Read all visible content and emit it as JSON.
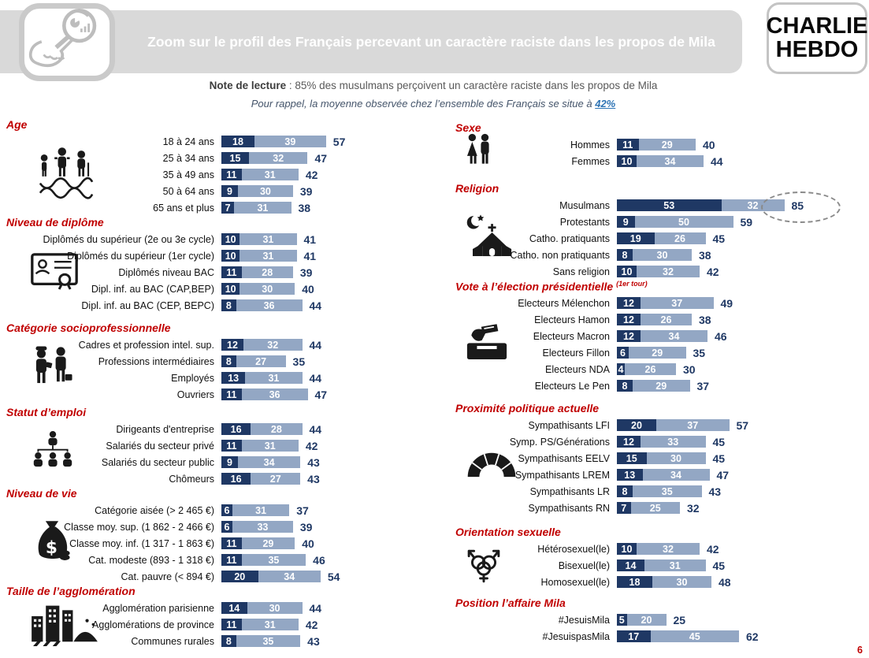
{
  "header": {
    "title": "Zoom sur le profil des Français percevant un caractère raciste dans les propos de Mila",
    "logo_line1": "CHARLIE",
    "logo_line2": "HEBDO",
    "note_label": "Note de lecture",
    "note_rest": " : 85% des musulmans perçoivent un caractère raciste dans les propos de Mila",
    "note_sub_prefix": "Pour rappel, la moyenne observée chez l’ensemble des Français se situe à ",
    "note_sub_value": "42%"
  },
  "page_number": "6",
  "colors": {
    "section_title_red": "#C00000",
    "bar_dark": "#1F3864",
    "bar_light": "#93A7C4",
    "band_gray": "#D9D9D9",
    "total_navy": "#1F3864",
    "note_link_blue": "#2E74B5"
  },
  "chart_data": {
    "type": "bar",
    "orientation": "horizontal",
    "stacked": true,
    "unit": "%",
    "value_range": [
      0,
      85
    ],
    "segments_meaning": [
      "dark navy segment",
      "light blue segment",
      "total shown right of bar"
    ],
    "columns": [
      {
        "sections": [
          {
            "title": "Age",
            "icon": "family-dna-icon",
            "rows": [
              {
                "label": "18 à 24 ans",
                "dark": 18,
                "light": 39,
                "total": 57
              },
              {
                "label": "25 à 34 ans",
                "dark": 15,
                "light": 32,
                "total": 47
              },
              {
                "label": "35 à 49 ans",
                "dark": 11,
                "light": 31,
                "total": 42
              },
              {
                "label": "50 à 64 ans",
                "dark": 9,
                "light": 30,
                "total": 39
              },
              {
                "label": "65 ans et plus",
                "dark": 7,
                "light": 31,
                "total": 38
              }
            ]
          },
          {
            "title": "Niveau de diplôme",
            "icon": "diploma-icon",
            "rows": [
              {
                "label": "Diplômés du supérieur (2e ou 3e cycle)",
                "dark": 10,
                "light": 31,
                "total": 41
              },
              {
                "label": "Diplômés du supérieur (1er cycle)",
                "dark": 10,
                "light": 31,
                "total": 41
              },
              {
                "label": "Diplômés niveau BAC",
                "dark": 11,
                "light": 28,
                "total": 39
              },
              {
                "label": "Dipl. inf. au BAC (CAP,BEP)",
                "dark": 10,
                "light": 30,
                "total": 40
              },
              {
                "label": "Dipl. inf. au BAC (CEP, BEPC)",
                "dark": 8,
                "light": 36,
                "total": 44
              }
            ]
          },
          {
            "title": "Catégorie socioprofessionnelle",
            "icon": "workers-icon",
            "rows": [
              {
                "label": "Cadres et profession intel. sup.",
                "dark": 12,
                "light": 32,
                "total": 44
              },
              {
                "label": "Professions intermédiaires",
                "dark": 8,
                "light": 27,
                "total": 35
              },
              {
                "label": "Employés",
                "dark": 13,
                "light": 31,
                "total": 44
              },
              {
                "label": "Ouvriers",
                "dark": 11,
                "light": 36,
                "total": 47
              }
            ]
          },
          {
            "title": "Statut d’emploi",
            "icon": "org-chart-icon",
            "rows": [
              {
                "label": "Dirigeants d'entreprise",
                "dark": 16,
                "light": 28,
                "total": 44
              },
              {
                "label": "Salariés du secteur privé",
                "dark": 11,
                "light": 31,
                "total": 42
              },
              {
                "label": "Salariés du secteur public",
                "dark": 9,
                "light": 34,
                "total": 43
              },
              {
                "label": "Chômeurs",
                "dark": 16,
                "light": 27,
                "total": 43
              }
            ]
          },
          {
            "title": "Niveau de vie",
            "icon": "money-bag-icon",
            "rows": [
              {
                "label": "Catégorie aisée (> 2 465 €)",
                "dark": 6,
                "light": 31,
                "total": 37
              },
              {
                "label": "Classe moy. sup. (1 862 - 2 466 €)",
                "dark": 6,
                "light": 33,
                "total": 39
              },
              {
                "label": "Classe moy. inf. (1 317 - 1 863 €)",
                "dark": 11,
                "light": 29,
                "total": 40
              },
              {
                "label": "Cat. modeste (893 - 1 318 €)",
                "dark": 11,
                "light": 35,
                "total": 46
              },
              {
                "label": "Cat. pauvre (< 894 €)",
                "dark": 20,
                "light": 34,
                "total": 54
              }
            ]
          },
          {
            "title": "Taille de l’agglomération",
            "icon": "city-icon",
            "rows": [
              {
                "label": "Agglomération parisienne",
                "dark": 14,
                "light": 30,
                "total": 44
              },
              {
                "label": "Agglomérations de province",
                "dark": 11,
                "light": 31,
                "total": 42
              },
              {
                "label": "Communes rurales",
                "dark": 8,
                "light": 35,
                "total": 43
              }
            ]
          }
        ]
      },
      {
        "sections": [
          {
            "title": "Sexe",
            "icon": "male-female-icon",
            "rows": [
              {
                "label": "Hommes",
                "dark": 11,
                "light": 29,
                "total": 40
              },
              {
                "label": "Femmes",
                "dark": 10,
                "light": 34,
                "total": 44
              }
            ]
          },
          {
            "title": "Religion",
            "icon": "religion-icon",
            "rows": [
              {
                "label": "Musulmans",
                "dark": 53,
                "light": 32,
                "total": 85,
                "circled": true
              },
              {
                "label": "Protestants",
                "dark": 9,
                "light": 50,
                "total": 59
              },
              {
                "label": "Catho. pratiquants",
                "dark": 19,
                "light": 26,
                "total": 45
              },
              {
                "label": "Catho. non pratiquants",
                "dark": 8,
                "light": 30,
                "total": 38
              },
              {
                "label": "Sans religion",
                "dark": 10,
                "light": 32,
                "total": 42
              }
            ]
          },
          {
            "title": "Vote à l’élection présidentielle",
            "title_sup": "(1er tour)",
            "icon": "ballot-box-icon",
            "rows": [
              {
                "label": "Electeurs Mélenchon",
                "dark": 12,
                "light": 37,
                "total": 49
              },
              {
                "label": "Electeurs Hamon",
                "dark": 12,
                "light": 26,
                "total": 38
              },
              {
                "label": "Electeurs Macron",
                "dark": 12,
                "light": 34,
                "total": 46
              },
              {
                "label": "Electeurs Fillon",
                "dark": 6,
                "light": 29,
                "total": 35
              },
              {
                "label": "Electeurs NDA",
                "dark": 4,
                "light": 26,
                "total": 30
              },
              {
                "label": "Electeurs Le Pen",
                "dark": 8,
                "light": 29,
                "total": 37
              }
            ]
          },
          {
            "title": "Proximité politique actuelle",
            "icon": "hemicycle-icon",
            "rows": [
              {
                "label": "Sympathisants LFI",
                "dark": 20,
                "light": 37,
                "total": 57
              },
              {
                "label": "Symp. PS/Générations",
                "dark": 12,
                "light": 33,
                "total": 45
              },
              {
                "label": "Sympathisants EELV",
                "dark": 15,
                "light": 30,
                "total": 45
              },
              {
                "label": "Sympathisants LREM",
                "dark": 13,
                "light": 34,
                "total": 47
              },
              {
                "label": "Sympathisants LR",
                "dark": 8,
                "light": 35,
                "total": 43
              },
              {
                "label": "Sympathisants RN",
                "dark": 7,
                "light": 25,
                "total": 32
              }
            ]
          },
          {
            "title": "Orientation sexuelle",
            "icon": "gender-symbols-icon",
            "rows": [
              {
                "label": "Hétérosexuel(le)",
                "dark": 10,
                "light": 32,
                "total": 42
              },
              {
                "label": "Bisexuel(le)",
                "dark": 14,
                "light": 31,
                "total": 45
              },
              {
                "label": "Homosexuel(le)",
                "dark": 18,
                "light": 30,
                "total": 48
              }
            ]
          },
          {
            "title": "Position l’affaire Mila",
            "icon": "",
            "rows": [
              {
                "label": "#JesuisMila",
                "dark": 5,
                "light": 20,
                "total": 25
              },
              {
                "label": "#JesuispasMila",
                "dark": 17,
                "light": 45,
                "total": 62
              }
            ]
          }
        ]
      }
    ]
  }
}
